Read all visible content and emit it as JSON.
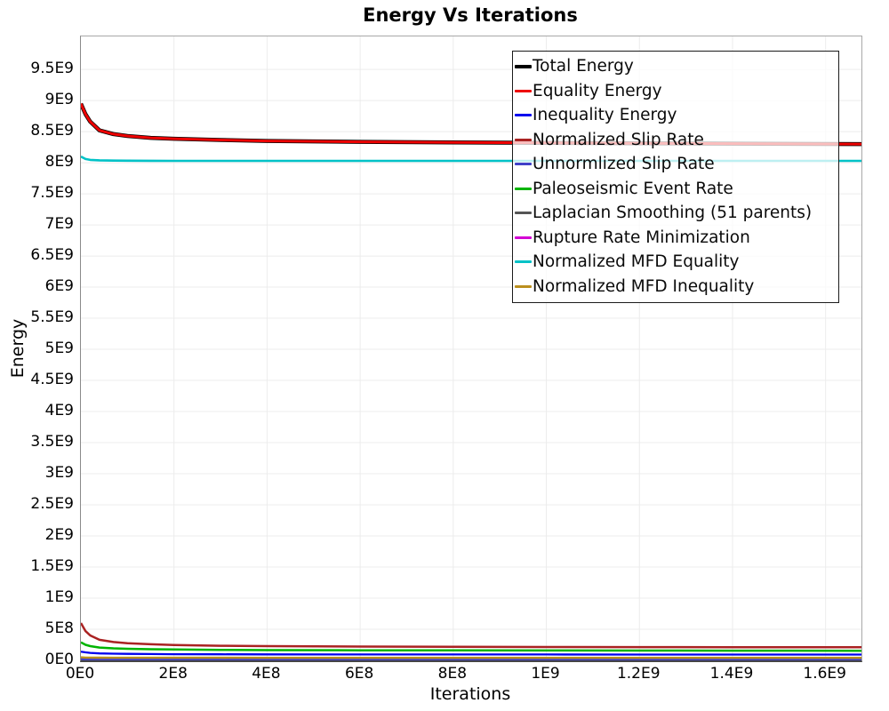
{
  "title": "Energy Vs Iterations",
  "axes": {
    "x_label": "Iterations",
    "y_label": "Energy",
    "x_ticks": [
      {
        "value": 0,
        "label": "0E0"
      },
      {
        "value": 200000000.0,
        "label": "2E8"
      },
      {
        "value": 400000000.0,
        "label": "4E8"
      },
      {
        "value": 600000000.0,
        "label": "6E8"
      },
      {
        "value": 800000000.0,
        "label": "8E8"
      },
      {
        "value": 1000000000.0,
        "label": "1E9"
      },
      {
        "value": 1200000000.0,
        "label": "1.2E9"
      },
      {
        "value": 1400000000.0,
        "label": "1.4E9"
      },
      {
        "value": 1600000000.0,
        "label": "1.6E9"
      }
    ],
    "y_ticks": [
      {
        "value": 0,
        "label": "0E0"
      },
      {
        "value": 500000000.0,
        "label": "5E8"
      },
      {
        "value": 1000000000.0,
        "label": "1E9"
      },
      {
        "value": 1500000000.0,
        "label": "1.5E9"
      },
      {
        "value": 2000000000.0,
        "label": "2E9"
      },
      {
        "value": 2500000000.0,
        "label": "2.5E9"
      },
      {
        "value": 3000000000.0,
        "label": "3E9"
      },
      {
        "value": 3500000000.0,
        "label": "3.5E9"
      },
      {
        "value": 4000000000.0,
        "label": "4E9"
      },
      {
        "value": 4500000000.0,
        "label": "4.5E9"
      },
      {
        "value": 5000000000.0,
        "label": "5E9"
      },
      {
        "value": 5500000000.0,
        "label": "5.5E9"
      },
      {
        "value": 6000000000.0,
        "label": "6E9"
      },
      {
        "value": 6500000000.0,
        "label": "6.5E9"
      },
      {
        "value": 7000000000.0,
        "label": "7E9"
      },
      {
        "value": 7500000000.0,
        "label": "7.5E9"
      },
      {
        "value": 8000000000.0,
        "label": "8E9"
      },
      {
        "value": 8500000000.0,
        "label": "8.5E9"
      },
      {
        "value": 9000000000.0,
        "label": "9E9"
      },
      {
        "value": 9500000000.0,
        "label": "9.5E9"
      }
    ]
  },
  "chart_data": {
    "type": "line",
    "title": "Energy Vs Iterations",
    "xlabel": "Iterations",
    "ylabel": "Energy",
    "xlim": [
      0,
      1677000000.0
    ],
    "ylim": [
      0,
      10030000000.0
    ],
    "grid": true,
    "grid_color": "#ececec",
    "legend_position": "top-right",
    "x": [
      0,
      10000000.0,
      20000000.0,
      40000000.0,
      70000000.0,
      100000000.0,
      150000000.0,
      200000000.0,
      300000000.0,
      400000000.0,
      600000000.0,
      800000000.0,
      1000000000.0,
      1200000000.0,
      1400000000.0,
      1677000000.0
    ],
    "series": [
      {
        "name": "Total Energy",
        "color": "#000000",
        "width": 4.5,
        "values": [
          8950000000.0,
          8780000000.0,
          8660000000.0,
          8520000000.0,
          8460000000.0,
          8430000000.0,
          8400000000.0,
          8385000000.0,
          8365000000.0,
          8350000000.0,
          8335000000.0,
          8325000000.0,
          8318000000.0,
          8312000000.0,
          8307000000.0,
          8300000000.0
        ]
      },
      {
        "name": "Equality Energy",
        "color": "#ee0000",
        "width": 3.0,
        "values": [
          8950000000.0,
          8780000000.0,
          8660000000.0,
          8520000000.0,
          8460000000.0,
          8430000000.0,
          8400000000.0,
          8385000000.0,
          8365000000.0,
          8350000000.0,
          8335000000.0,
          8325000000.0,
          8318000000.0,
          8312000000.0,
          8307000000.0,
          8300000000.0
        ]
      },
      {
        "name": "Inequality Energy",
        "color": "#0000ee",
        "width": 2.3,
        "values": [
          140000000.0,
          128000000.0,
          120000000.0,
          112000000.0,
          107000000.0,
          104000000.0,
          101000000.0,
          99000000.0,
          97000000.0,
          96000000.0,
          95000000.0,
          94000000.0,
          94000000.0,
          93000000.0,
          93000000.0,
          93000000.0
        ]
      },
      {
        "name": "Normalized Slip Rate",
        "color": "#aa2222",
        "width": 2.5,
        "values": [
          600000000.0,
          470000000.0,
          400000000.0,
          330000000.0,
          295000000.0,
          275000000.0,
          258000000.0,
          247000000.0,
          235000000.0,
          229000000.0,
          222000000.0,
          218000000.0,
          215000000.0,
          213000000.0,
          212000000.0,
          210000000.0
        ]
      },
      {
        "name": "Unnormlized Slip Rate",
        "color": "#4040c8",
        "width": 2.3,
        "values": [
          20000000.0,
          16000000.0,
          15000000.0,
          14000000.0,
          13000000.0,
          13000000.0,
          12000000.0,
          12000000.0,
          12000000.0,
          11000000.0,
          11000000.0,
          11000000.0,
          11000000.0,
          11000000.0,
          11000000.0,
          11000000.0
        ]
      },
      {
        "name": "Paleoseismic Event Rate",
        "color": "#00b400",
        "width": 2.5,
        "values": [
          290000000.0,
          250000000.0,
          228000000.0,
          206000000.0,
          193000000.0,
          186000000.0,
          179000000.0,
          174000000.0,
          168000000.0,
          165000000.0,
          162000000.0,
          160000000.0,
          158000000.0,
          157000000.0,
          156000000.0,
          155000000.0
        ]
      },
      {
        "name": "Laplacian Smoothing (51 parents)",
        "color": "#555555",
        "width": 2.3,
        "values": [
          15000000.0,
          13000000.0,
          12000000.0,
          11000000.0,
          10000000.0,
          10000000.0,
          9000000.0,
          9000000.0,
          9000000.0,
          9000000.0,
          8000000.0,
          8000000.0,
          8000000.0,
          8000000.0,
          8000000.0,
          8000000.0
        ]
      },
      {
        "name": "Rupture Rate Minimization",
        "color": "#d400d4",
        "width": 2.3,
        "values": [
          10000000.0,
          9000000.0,
          8000000.0,
          8000000.0,
          7000000.0,
          7000000.0,
          7000000.0,
          7000000.0,
          6000000.0,
          6000000.0,
          6000000.0,
          6000000.0,
          6000000.0,
          6000000.0,
          6000000.0,
          6000000.0
        ]
      },
      {
        "name": "Normalized MFD Equality",
        "color": "#00c2c7",
        "width": 2.6,
        "values": [
          8100000000.0,
          8060000000.0,
          8045000000.0,
          8038000000.0,
          8034000000.0,
          8032000000.0,
          8031000000.0,
          8030000000.0,
          8030000000.0,
          8030000000.0,
          8030000000.0,
          8030000000.0,
          8030000000.0,
          8030000000.0,
          8030000000.0,
          8030000000.0
        ]
      },
      {
        "name": "Normalized MFD Inequality",
        "color": "#bb8f1e",
        "width": 2.4,
        "values": [
          48000000.0,
          45000000.0,
          44000000.0,
          43000000.0,
          42000000.0,
          42000000.0,
          41000000.0,
          41000000.0,
          41000000.0,
          40000000.0,
          40000000.0,
          40000000.0,
          40000000.0,
          40000000.0,
          40000000.0,
          40000000.0
        ]
      }
    ]
  }
}
